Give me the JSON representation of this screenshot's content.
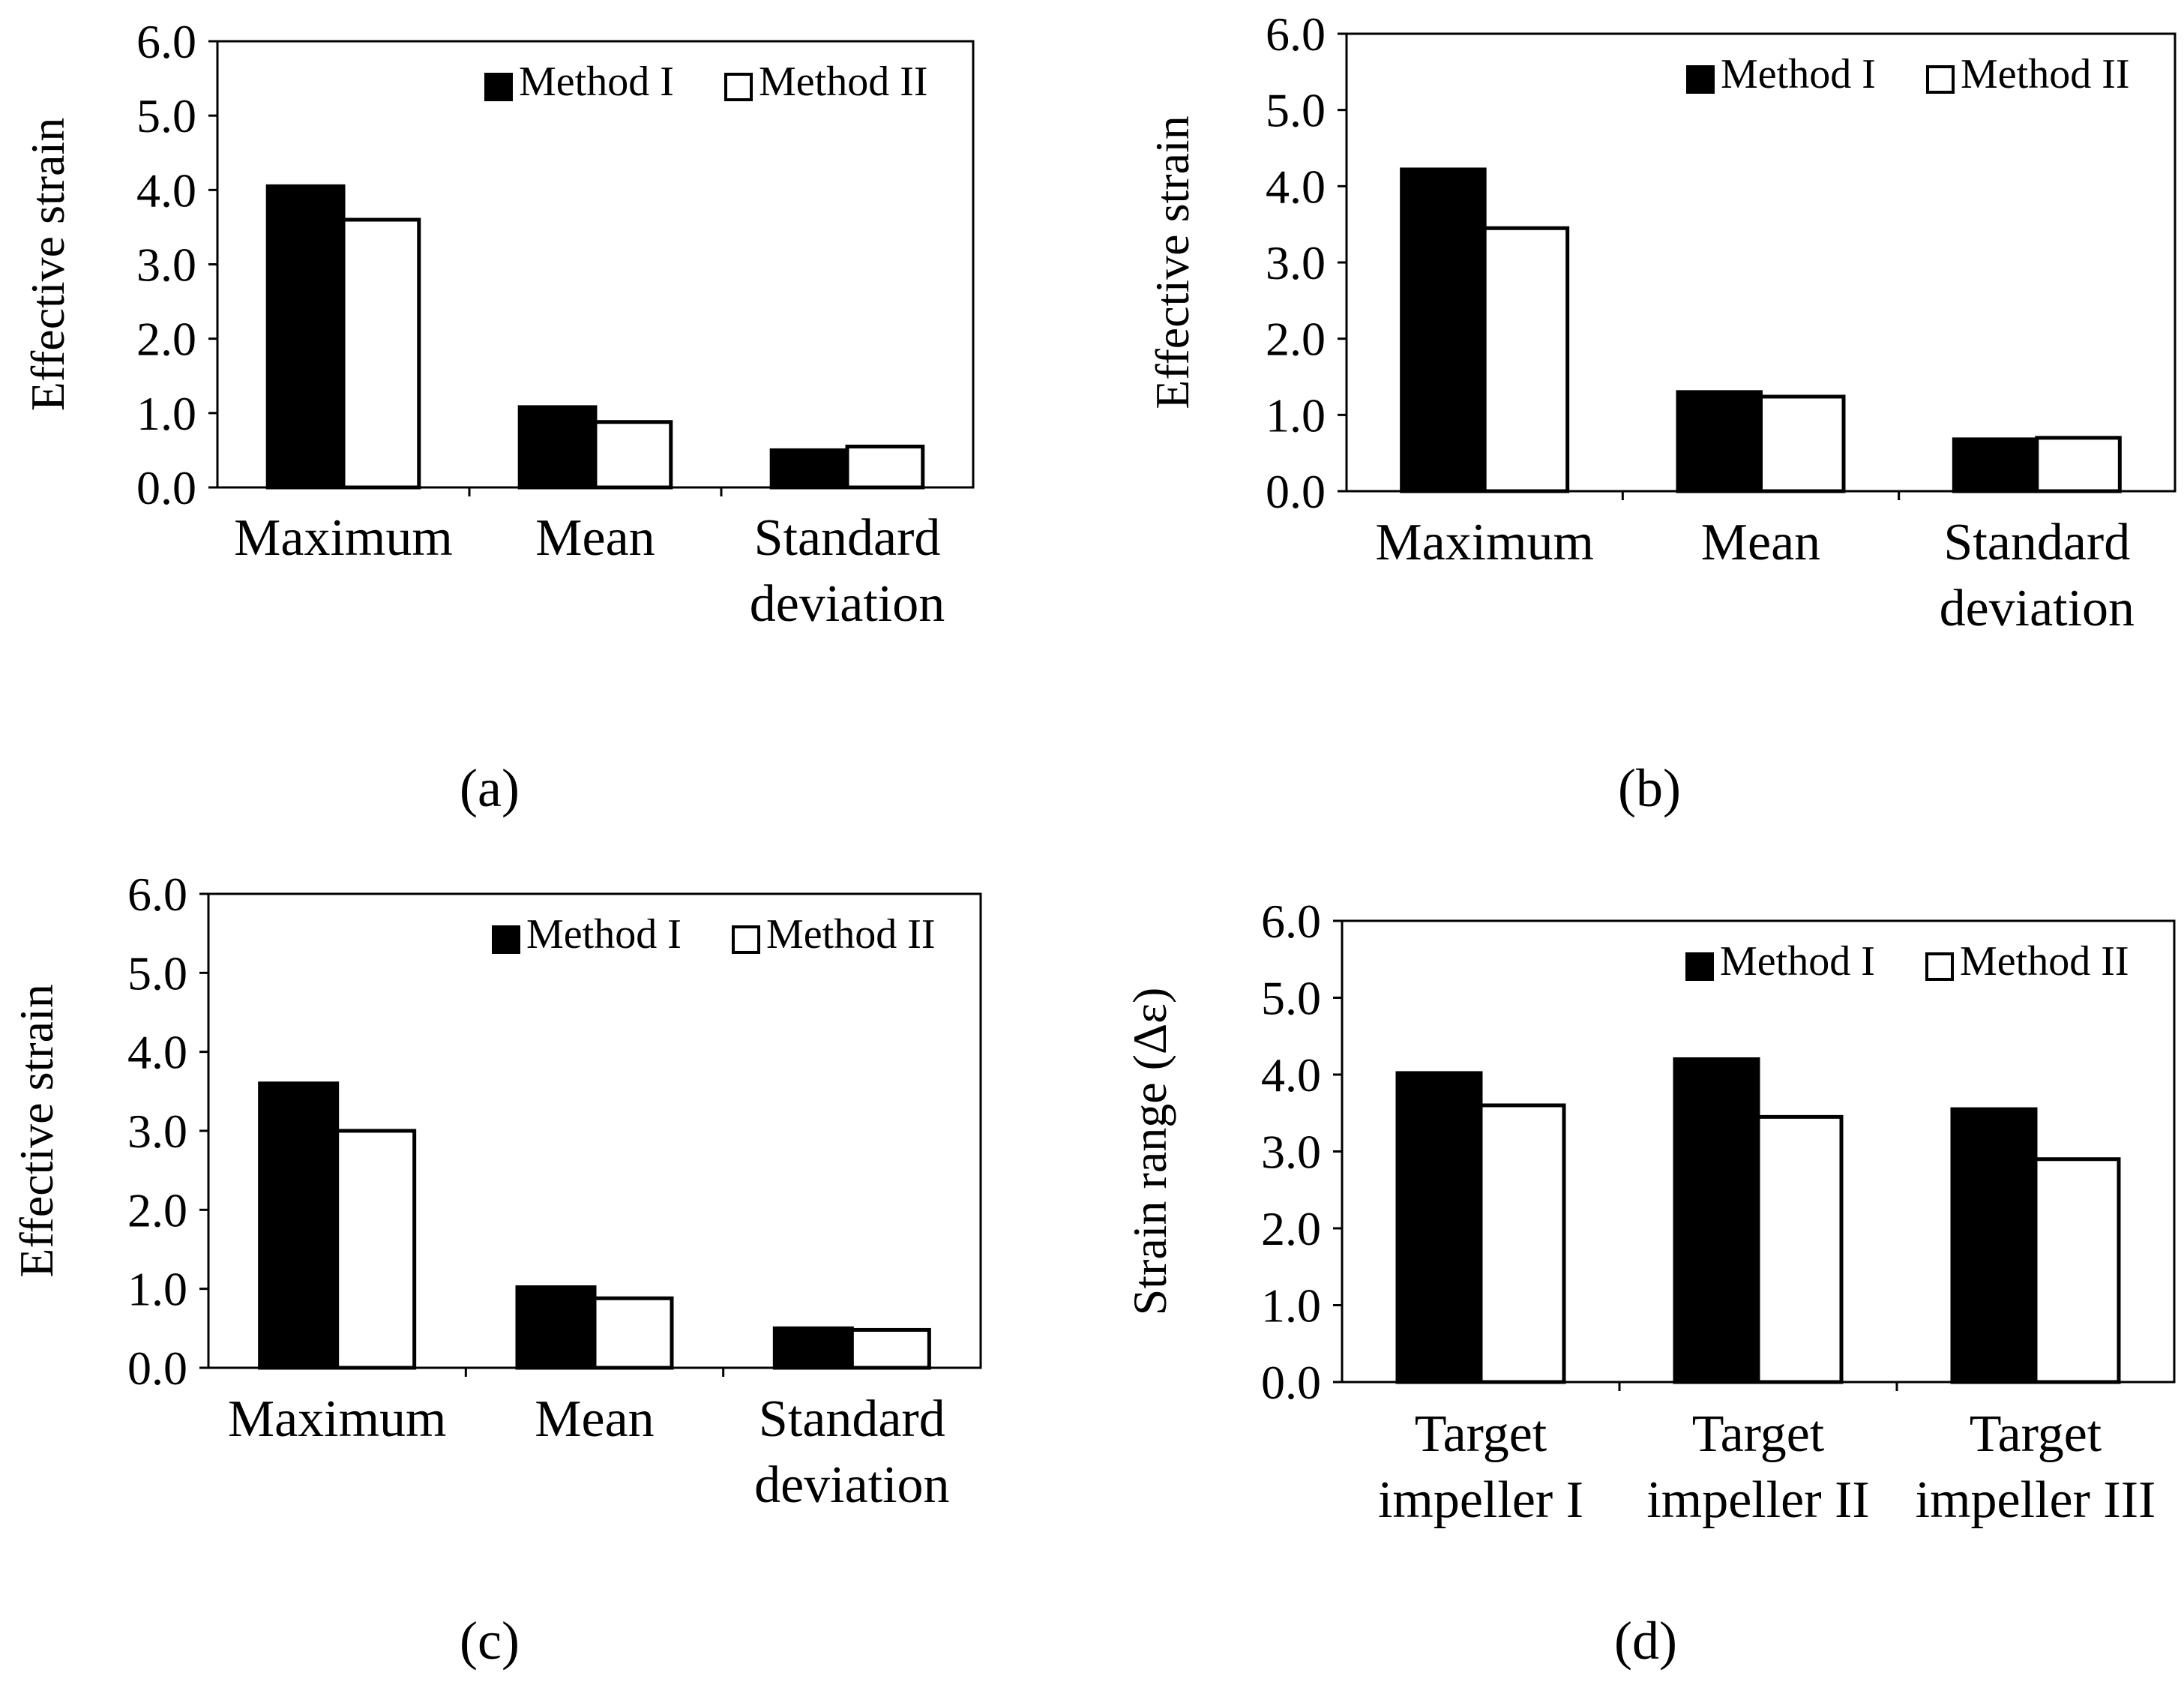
{
  "colors": {
    "method_i": "#000000",
    "method_ii": "#ffffff",
    "axis": "#000000"
  },
  "chart_data": [
    {
      "type": "bar",
      "panel_label": "(a)",
      "ylabel": "Effective strain",
      "ylim": [
        0,
        6
      ],
      "yticks": [
        "0.0",
        "1.0",
        "2.0",
        "3.0",
        "4.0",
        "5.0",
        "6.0"
      ],
      "categories": [
        [
          "Maximum"
        ],
        [
          "Mean"
        ],
        [
          "Standard",
          "deviation"
        ]
      ],
      "series": [
        {
          "name": "Method I",
          "values": [
            4.05,
            1.08,
            0.5
          ]
        },
        {
          "name": "Method II",
          "values": [
            3.6,
            0.88,
            0.55
          ]
        }
      ],
      "legend": "top-right"
    },
    {
      "type": "bar",
      "panel_label": "(b)",
      "ylabel": "Effective strain",
      "ylim": [
        0,
        6
      ],
      "yticks": [
        "0.0",
        "1.0",
        "2.0",
        "3.0",
        "4.0",
        "5.0",
        "6.0"
      ],
      "categories": [
        [
          "Maximum"
        ],
        [
          "Mean"
        ],
        [
          "Standard",
          "deviation"
        ]
      ],
      "series": [
        {
          "name": "Method I",
          "values": [
            4.22,
            1.3,
            0.68
          ]
        },
        {
          "name": "Method II",
          "values": [
            3.45,
            1.24,
            0.7
          ]
        }
      ],
      "legend": "top-right"
    },
    {
      "type": "bar",
      "panel_label": "(c)",
      "ylabel": "Effective strain",
      "ylim": [
        0,
        6
      ],
      "yticks": [
        "0.0",
        "1.0",
        "2.0",
        "3.0",
        "4.0",
        "5.0",
        "6.0"
      ],
      "categories": [
        [
          "Maximum"
        ],
        [
          "Mean"
        ],
        [
          "Standard",
          "deviation"
        ]
      ],
      "series": [
        {
          "name": "Method I",
          "values": [
            3.6,
            1.02,
            0.5
          ]
        },
        {
          "name": "Method II",
          "values": [
            3.0,
            0.88,
            0.48
          ]
        }
      ],
      "legend": "top-right"
    },
    {
      "type": "bar",
      "panel_label": "(d)",
      "ylabel": "Strain range (Δε)",
      "ylim": [
        0,
        6
      ],
      "yticks": [
        "0.0",
        "1.0",
        "2.0",
        "3.0",
        "4.0",
        "5.0",
        "6.0"
      ],
      "categories": [
        [
          "Target",
          "impeller I"
        ],
        [
          "Target",
          "impeller II"
        ],
        [
          "Target",
          "impeller III"
        ]
      ],
      "series": [
        {
          "name": "Method I",
          "values": [
            4.02,
            4.2,
            3.55
          ]
        },
        {
          "name": "Method II",
          "values": [
            3.6,
            3.45,
            2.9
          ]
        }
      ],
      "legend": "top-right"
    }
  ]
}
